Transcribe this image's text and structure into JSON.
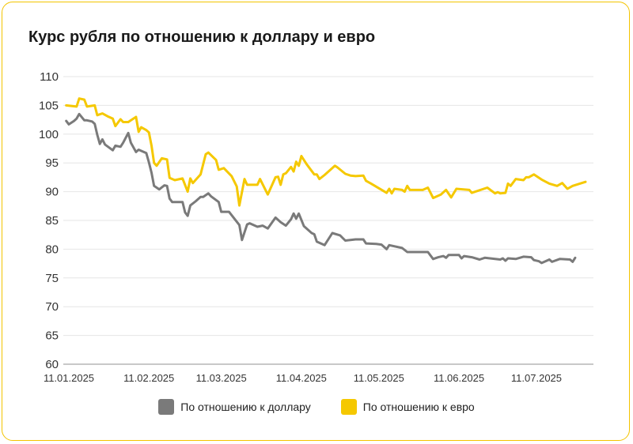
{
  "title": "Курс рубля по отношению к доллару и евро",
  "colors": {
    "usd": "#7a7a7a",
    "eur": "#f5c800",
    "grid": "#e6e6e6",
    "baseline": "#c8c8c8",
    "border": "#f3c400"
  },
  "chart_data": {
    "type": "line",
    "title": "Курс рубля по отношению к доллару и евро",
    "xlabel": "",
    "ylabel": "",
    "ylim": [
      60,
      110
    ],
    "yticks": [
      60,
      65,
      70,
      75,
      80,
      85,
      90,
      95,
      100,
      105,
      110
    ],
    "xticks": [
      "11.01.2025",
      "11.02.2025",
      "11.03.2025",
      "11.04.2025",
      "11.05.2025",
      "11.06.2025",
      "11.07.2025"
    ],
    "xlim": [
      "2025-01-11",
      "2025-07-30"
    ],
    "grid": true,
    "legend_position": "bottom",
    "series": [
      {
        "name": "По отношению к доллару",
        "color": "#7a7a7a",
        "points": [
          [
            "2025-01-10",
            102.3
          ],
          [
            "2025-01-11",
            101.7
          ],
          [
            "2025-01-13",
            102.3
          ],
          [
            "2025-01-14",
            102.7
          ],
          [
            "2025-01-15",
            103.5
          ],
          [
            "2025-01-17",
            102.4
          ],
          [
            "2025-01-18",
            102.4
          ],
          [
            "2025-01-20",
            102.2
          ],
          [
            "2025-01-21",
            101.8
          ],
          [
            "2025-01-22",
            99.9
          ],
          [
            "2025-01-23",
            98.3
          ],
          [
            "2025-01-24",
            99.1
          ],
          [
            "2025-01-25",
            98.2
          ],
          [
            "2025-01-28",
            97.2
          ],
          [
            "2025-01-29",
            98.0
          ],
          [
            "2025-01-31",
            97.8
          ],
          [
            "2025-02-01",
            98.5
          ],
          [
            "2025-02-03",
            100.2
          ],
          [
            "2025-02-04",
            98.5
          ],
          [
            "2025-02-06",
            96.9
          ],
          [
            "2025-02-07",
            97.3
          ],
          [
            "2025-02-10",
            96.7
          ],
          [
            "2025-02-11",
            95.1
          ],
          [
            "2025-02-12",
            93.3
          ],
          [
            "2025-02-13",
            91.0
          ],
          [
            "2025-02-15",
            90.4
          ],
          [
            "2025-02-17",
            91.1
          ],
          [
            "2025-02-18",
            91.0
          ],
          [
            "2025-02-19",
            88.8
          ],
          [
            "2025-02-20",
            88.2
          ],
          [
            "2025-02-22",
            88.2
          ],
          [
            "2025-02-24",
            88.2
          ],
          [
            "2025-02-25",
            86.4
          ],
          [
            "2025-02-26",
            85.8
          ],
          [
            "2025-02-27",
            87.6
          ],
          [
            "2025-03-01",
            88.3
          ],
          [
            "2025-03-03",
            89.1
          ],
          [
            "2025-03-04",
            89.1
          ],
          [
            "2025-03-06",
            89.7
          ],
          [
            "2025-03-07",
            89.2
          ],
          [
            "2025-03-10",
            88.2
          ],
          [
            "2025-03-11",
            86.5
          ],
          [
            "2025-03-12",
            86.5
          ],
          [
            "2025-03-14",
            86.5
          ],
          [
            "2025-03-18",
            84.2
          ],
          [
            "2025-03-19",
            81.6
          ],
          [
            "2025-03-21",
            84.3
          ],
          [
            "2025-03-22",
            84.5
          ],
          [
            "2025-03-25",
            83.9
          ],
          [
            "2025-03-27",
            84.1
          ],
          [
            "2025-03-29",
            83.6
          ],
          [
            "2025-04-01",
            85.5
          ],
          [
            "2025-04-03",
            84.7
          ],
          [
            "2025-04-05",
            84.1
          ],
          [
            "2025-04-07",
            85.2
          ],
          [
            "2025-04-08",
            86.2
          ],
          [
            "2025-04-09",
            85.3
          ],
          [
            "2025-04-10",
            86.2
          ],
          [
            "2025-04-12",
            84.0
          ],
          [
            "2025-04-15",
            82.8
          ],
          [
            "2025-04-16",
            82.6
          ],
          [
            "2025-04-17",
            81.3
          ],
          [
            "2025-04-20",
            80.7
          ],
          [
            "2025-04-23",
            82.8
          ],
          [
            "2025-04-26",
            82.4
          ],
          [
            "2025-04-28",
            81.5
          ],
          [
            "2025-05-02",
            81.7
          ],
          [
            "2025-05-05",
            81.7
          ],
          [
            "2025-05-06",
            81.0
          ],
          [
            "2025-05-10",
            80.9
          ],
          [
            "2025-05-12",
            80.8
          ],
          [
            "2025-05-14",
            80.0
          ],
          [
            "2025-05-15",
            80.7
          ],
          [
            "2025-05-20",
            80.2
          ],
          [
            "2025-05-22",
            79.5
          ],
          [
            "2025-05-30",
            79.5
          ],
          [
            "2025-06-01",
            78.3
          ],
          [
            "2025-06-03",
            78.6
          ],
          [
            "2025-06-05",
            78.8
          ],
          [
            "2025-06-06",
            78.5
          ],
          [
            "2025-06-07",
            79.0
          ],
          [
            "2025-06-11",
            79.0
          ],
          [
            "2025-06-12",
            78.4
          ],
          [
            "2025-06-13",
            78.8
          ],
          [
            "2025-06-16",
            78.6
          ],
          [
            "2025-06-19",
            78.2
          ],
          [
            "2025-06-21",
            78.5
          ],
          [
            "2025-06-27",
            78.2
          ],
          [
            "2025-06-28",
            78.4
          ],
          [
            "2025-06-29",
            78.0
          ],
          [
            "2025-06-30",
            78.4
          ],
          [
            "2025-07-03",
            78.3
          ],
          [
            "2025-07-06",
            78.7
          ],
          [
            "2025-07-09",
            78.6
          ],
          [
            "2025-07-10",
            78.1
          ],
          [
            "2025-07-12",
            77.9
          ],
          [
            "2025-07-13",
            77.6
          ],
          [
            "2025-07-15",
            78.0
          ],
          [
            "2025-07-16",
            78.2
          ],
          [
            "2025-07-17",
            77.8
          ],
          [
            "2025-07-20",
            78.3
          ],
          [
            "2025-07-24",
            78.2
          ],
          [
            "2025-07-25",
            77.8
          ],
          [
            "2025-07-26",
            78.5
          ]
        ]
      },
      {
        "name": "По отношению к евро",
        "color": "#f5c800",
        "points": [
          [
            "2025-01-10",
            105.0
          ],
          [
            "2025-01-14",
            104.8
          ],
          [
            "2025-01-15",
            106.2
          ],
          [
            "2025-01-17",
            106.0
          ],
          [
            "2025-01-18",
            104.8
          ],
          [
            "2025-01-21",
            105.0
          ],
          [
            "2025-01-22",
            103.3
          ],
          [
            "2025-01-24",
            103.6
          ],
          [
            "2025-01-26",
            103.1
          ],
          [
            "2025-01-28",
            102.7
          ],
          [
            "2025-01-29",
            101.4
          ],
          [
            "2025-01-31",
            102.6
          ],
          [
            "2025-02-01",
            102.1
          ],
          [
            "2025-02-03",
            102.1
          ],
          [
            "2025-02-04",
            102.4
          ],
          [
            "2025-02-06",
            103.0
          ],
          [
            "2025-02-07",
            100.4
          ],
          [
            "2025-02-08",
            101.2
          ],
          [
            "2025-02-10",
            100.7
          ],
          [
            "2025-02-11",
            100.3
          ],
          [
            "2025-02-12",
            98.0
          ],
          [
            "2025-02-13",
            95.0
          ],
          [
            "2025-02-14",
            94.5
          ],
          [
            "2025-02-16",
            95.8
          ],
          [
            "2025-02-18",
            95.6
          ],
          [
            "2025-02-19",
            92.4
          ],
          [
            "2025-02-21",
            92.0
          ],
          [
            "2025-02-24",
            92.3
          ],
          [
            "2025-02-26",
            90.0
          ],
          [
            "2025-02-27",
            92.3
          ],
          [
            "2025-02-28",
            91.5
          ],
          [
            "2025-03-01",
            92.0
          ],
          [
            "2025-03-03",
            93.0
          ],
          [
            "2025-03-05",
            96.5
          ],
          [
            "2025-03-06",
            96.8
          ],
          [
            "2025-03-09",
            95.5
          ],
          [
            "2025-03-10",
            93.8
          ],
          [
            "2025-03-12",
            94.1
          ],
          [
            "2025-03-15",
            92.7
          ],
          [
            "2025-03-17",
            90.9
          ],
          [
            "2025-03-18",
            87.6
          ],
          [
            "2025-03-20",
            92.2
          ],
          [
            "2025-03-21",
            91.2
          ],
          [
            "2025-03-25",
            91.2
          ],
          [
            "2025-03-26",
            92.2
          ],
          [
            "2025-03-29",
            89.5
          ],
          [
            "2025-04-01",
            92.5
          ],
          [
            "2025-04-02",
            92.6
          ],
          [
            "2025-04-03",
            91.2
          ],
          [
            "2025-04-04",
            93.0
          ],
          [
            "2025-04-05",
            93.2
          ],
          [
            "2025-04-07",
            94.3
          ],
          [
            "2025-04-08",
            93.5
          ],
          [
            "2025-04-09",
            95.2
          ],
          [
            "2025-04-10",
            94.5
          ],
          [
            "2025-04-11",
            96.2
          ],
          [
            "2025-04-13",
            94.8
          ],
          [
            "2025-04-16",
            93.0
          ],
          [
            "2025-04-17",
            93.0
          ],
          [
            "2025-04-18",
            92.2
          ],
          [
            "2025-04-20",
            92.9
          ],
          [
            "2025-04-24",
            94.5
          ],
          [
            "2025-04-25",
            94.2
          ],
          [
            "2025-04-28",
            93.1
          ],
          [
            "2025-04-30",
            92.8
          ],
          [
            "2025-05-02",
            92.7
          ],
          [
            "2025-05-05",
            92.8
          ],
          [
            "2025-05-06",
            91.9
          ],
          [
            "2025-05-08",
            91.4
          ],
          [
            "2025-05-14",
            89.8
          ],
          [
            "2025-05-15",
            90.5
          ],
          [
            "2025-05-16",
            89.7
          ],
          [
            "2025-05-17",
            90.5
          ],
          [
            "2025-05-20",
            90.3
          ],
          [
            "2025-05-21",
            90.0
          ],
          [
            "2025-05-22",
            91.0
          ],
          [
            "2025-05-23",
            90.3
          ],
          [
            "2025-05-28",
            90.3
          ],
          [
            "2025-05-30",
            90.7
          ],
          [
            "2025-06-01",
            88.9
          ],
          [
            "2025-06-04",
            89.5
          ],
          [
            "2025-06-06",
            90.3
          ],
          [
            "2025-06-08",
            89.0
          ],
          [
            "2025-06-10",
            90.5
          ],
          [
            "2025-06-15",
            90.3
          ],
          [
            "2025-06-16",
            89.8
          ],
          [
            "2025-06-22",
            90.7
          ],
          [
            "2025-06-25",
            89.7
          ],
          [
            "2025-06-26",
            89.9
          ],
          [
            "2025-06-27",
            89.7
          ],
          [
            "2025-06-29",
            89.8
          ],
          [
            "2025-06-30",
            91.4
          ],
          [
            "2025-07-01",
            91.0
          ],
          [
            "2025-07-03",
            92.2
          ],
          [
            "2025-07-06",
            92.0
          ],
          [
            "2025-07-07",
            92.5
          ],
          [
            "2025-07-08",
            92.5
          ],
          [
            "2025-07-10",
            93.0
          ],
          [
            "2025-07-13",
            92.1
          ],
          [
            "2025-07-16",
            91.4
          ],
          [
            "2025-07-19",
            91.0
          ],
          [
            "2025-07-21",
            91.5
          ],
          [
            "2025-07-23",
            90.5
          ],
          [
            "2025-07-25",
            91.0
          ],
          [
            "2025-07-30",
            91.7
          ]
        ]
      }
    ]
  },
  "legend": {
    "usd_label": "По отношению к доллару",
    "eur_label": "По отношению к евро"
  }
}
